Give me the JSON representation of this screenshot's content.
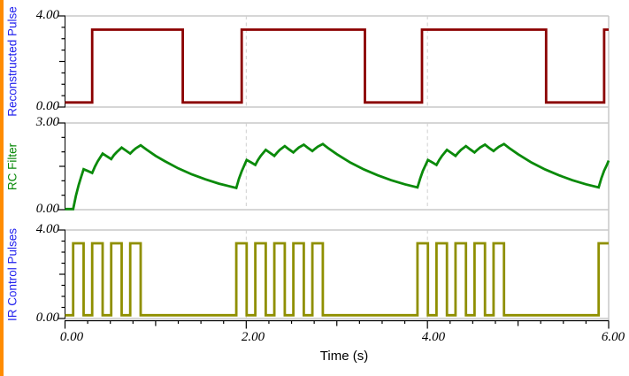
{
  "chart_data": {
    "type": "line",
    "xlabel": "Time (s)",
    "xlim": [
      0,
      6
    ],
    "x_axis": {
      "tick_values": [
        0,
        2,
        4,
        6
      ],
      "labels": [
        "0.00",
        "2.00",
        "4.00",
        "6.00"
      ],
      "minor_tick_step": 0.25,
      "medium_tick_step": 1.0
    },
    "dashed_gridline_times": [
      2,
      4
    ],
    "grid": "partial",
    "legend_position": "none",
    "colors": {
      "grid": "#C8C8C8",
      "dashed_grid": "#CFCFCF",
      "axis": "#000000",
      "accent_border": "#FF8C00",
      "label_blue": "#2222EE",
      "label_green": "#0A8A0A"
    },
    "panels": [
      {
        "title": "Reconstructed Pulse",
        "title_color": "#2222EE",
        "line_color": "#8B0000",
        "ylim": [
          0,
          4
        ],
        "y_minor_step": 0.5,
        "y_tick_labels": {
          "max": "4.00",
          "min": "0.00"
        },
        "points": [
          [
            0,
            0.2
          ],
          [
            0.3,
            0.2
          ],
          [
            0.3,
            3.4
          ],
          [
            1.3,
            3.4
          ],
          [
            1.3,
            0.2
          ],
          [
            1.95,
            0.2
          ],
          [
            1.95,
            3.4
          ],
          [
            3.31,
            3.4
          ],
          [
            3.31,
            0.2
          ],
          [
            3.94,
            0.2
          ],
          [
            3.94,
            3.4
          ],
          [
            5.31,
            3.4
          ],
          [
            5.31,
            0.2
          ],
          [
            5.95,
            0.2
          ],
          [
            5.95,
            3.4
          ],
          [
            6,
            3.4
          ]
        ]
      },
      {
        "title": "RC Filter",
        "title_color": "#0A8A0A",
        "line_color": "#0A8A0A",
        "ylim": [
          0,
          3
        ],
        "y_minor_step": 0.5,
        "y_tick_labels": {
          "max": "3.00",
          "min": "0.00"
        },
        "points": [
          [
            0,
            0.02
          ],
          [
            0.09,
            0.02
          ],
          [
            0.12,
            0.48
          ],
          [
            0.15,
            0.85
          ],
          [
            0.18,
            1.15
          ],
          [
            0.205,
            1.4
          ],
          [
            0.25,
            1.34
          ],
          [
            0.3,
            1.27
          ],
          [
            0.33,
            1.49
          ],
          [
            0.36,
            1.67
          ],
          [
            0.415,
            1.94
          ],
          [
            0.46,
            1.85
          ],
          [
            0.51,
            1.75
          ],
          [
            0.54,
            1.89
          ],
          [
            0.57,
            1.99
          ],
          [
            0.625,
            2.15
          ],
          [
            0.67,
            2.05
          ],
          [
            0.72,
            1.94
          ],
          [
            0.75,
            2.04
          ],
          [
            0.78,
            2.12
          ],
          [
            0.835,
            2.23
          ],
          [
            0.9,
            2.08
          ],
          [
            1.0,
            1.86
          ],
          [
            1.1,
            1.68
          ],
          [
            1.25,
            1.43
          ],
          [
            1.4,
            1.22
          ],
          [
            1.55,
            1.05
          ],
          [
            1.7,
            0.9
          ],
          [
            1.8,
            0.82
          ],
          [
            1.89,
            0.75
          ],
          [
            1.92,
            1.07
          ],
          [
            1.95,
            1.33
          ],
          [
            2.005,
            1.72
          ],
          [
            2.05,
            1.64
          ],
          [
            2.1,
            1.55
          ],
          [
            2.13,
            1.72
          ],
          [
            2.16,
            1.86
          ],
          [
            2.215,
            2.07
          ],
          [
            2.26,
            1.97
          ],
          [
            2.31,
            1.86
          ],
          [
            2.34,
            1.97
          ],
          [
            2.37,
            2.07
          ],
          [
            2.425,
            2.2
          ],
          [
            2.47,
            2.09
          ],
          [
            2.52,
            1.98
          ],
          [
            2.55,
            2.07
          ],
          [
            2.58,
            2.15
          ],
          [
            2.635,
            2.25
          ],
          [
            2.68,
            2.14
          ],
          [
            2.73,
            2.03
          ],
          [
            2.76,
            2.11
          ],
          [
            2.79,
            2.18
          ],
          [
            2.845,
            2.27
          ],
          [
            2.9,
            2.14
          ],
          [
            3.0,
            1.92
          ],
          [
            3.15,
            1.63
          ],
          [
            3.3,
            1.39
          ],
          [
            3.45,
            1.19
          ],
          [
            3.6,
            1.02
          ],
          [
            3.75,
            0.88
          ],
          [
            3.89,
            0.77
          ],
          [
            3.92,
            1.08
          ],
          [
            3.95,
            1.34
          ],
          [
            4.005,
            1.72
          ],
          [
            4.05,
            1.64
          ],
          [
            4.1,
            1.55
          ],
          [
            4.13,
            1.72
          ],
          [
            4.16,
            1.86
          ],
          [
            4.215,
            2.07
          ],
          [
            4.26,
            1.97
          ],
          [
            4.31,
            1.86
          ],
          [
            4.34,
            1.97
          ],
          [
            4.37,
            2.07
          ],
          [
            4.425,
            2.2
          ],
          [
            4.47,
            2.09
          ],
          [
            4.52,
            1.98
          ],
          [
            4.55,
            2.07
          ],
          [
            4.58,
            2.15
          ],
          [
            4.635,
            2.25
          ],
          [
            4.68,
            2.14
          ],
          [
            4.73,
            2.03
          ],
          [
            4.76,
            2.11
          ],
          [
            4.79,
            2.18
          ],
          [
            4.845,
            2.27
          ],
          [
            4.9,
            2.14
          ],
          [
            5.0,
            1.92
          ],
          [
            5.15,
            1.63
          ],
          [
            5.3,
            1.39
          ],
          [
            5.45,
            1.19
          ],
          [
            5.6,
            1.02
          ],
          [
            5.75,
            0.88
          ],
          [
            5.89,
            0.77
          ],
          [
            5.92,
            1.09
          ],
          [
            5.95,
            1.35
          ],
          [
            5.98,
            1.55
          ],
          [
            6,
            1.7
          ]
        ]
      },
      {
        "title": "IR Control Pulses",
        "title_color": "#2222EE",
        "line_color": "#8F8F00",
        "ylim": [
          0,
          4
        ],
        "y_minor_step": 0.5,
        "y_tick_labels": {
          "max": "4.00",
          "min": "0.00"
        },
        "points": [
          [
            0,
            0.15
          ],
          [
            0.09,
            0.15
          ],
          [
            0.09,
            3.4
          ],
          [
            0.205,
            3.4
          ],
          [
            0.205,
            0.15
          ],
          [
            0.3,
            0.15
          ],
          [
            0.3,
            3.4
          ],
          [
            0.415,
            3.4
          ],
          [
            0.415,
            0.15
          ],
          [
            0.51,
            0.15
          ],
          [
            0.51,
            3.4
          ],
          [
            0.625,
            3.4
          ],
          [
            0.625,
            0.15
          ],
          [
            0.72,
            0.15
          ],
          [
            0.72,
            3.4
          ],
          [
            0.835,
            3.4
          ],
          [
            0.835,
            0.15
          ],
          [
            1.89,
            0.15
          ],
          [
            1.89,
            3.4
          ],
          [
            2.005,
            3.4
          ],
          [
            2.005,
            0.15
          ],
          [
            2.1,
            0.15
          ],
          [
            2.1,
            3.4
          ],
          [
            2.215,
            3.4
          ],
          [
            2.215,
            0.15
          ],
          [
            2.31,
            0.15
          ],
          [
            2.31,
            3.4
          ],
          [
            2.425,
            3.4
          ],
          [
            2.425,
            0.15
          ],
          [
            2.52,
            0.15
          ],
          [
            2.52,
            3.4
          ],
          [
            2.635,
            3.4
          ],
          [
            2.635,
            0.15
          ],
          [
            2.73,
            0.15
          ],
          [
            2.73,
            3.4
          ],
          [
            2.845,
            3.4
          ],
          [
            2.845,
            0.15
          ],
          [
            3.89,
            0.15
          ],
          [
            3.89,
            3.4
          ],
          [
            4.005,
            3.4
          ],
          [
            4.005,
            0.15
          ],
          [
            4.1,
            0.15
          ],
          [
            4.1,
            3.4
          ],
          [
            4.215,
            3.4
          ],
          [
            4.215,
            0.15
          ],
          [
            4.31,
            0.15
          ],
          [
            4.31,
            3.4
          ],
          [
            4.425,
            3.4
          ],
          [
            4.425,
            0.15
          ],
          [
            4.52,
            0.15
          ],
          [
            4.52,
            3.4
          ],
          [
            4.635,
            3.4
          ],
          [
            4.635,
            0.15
          ],
          [
            4.73,
            0.15
          ],
          [
            4.73,
            3.4
          ],
          [
            4.845,
            3.4
          ],
          [
            4.845,
            0.15
          ],
          [
            5.89,
            0.15
          ],
          [
            5.89,
            3.4
          ],
          [
            6,
            3.4
          ]
        ]
      }
    ]
  }
}
